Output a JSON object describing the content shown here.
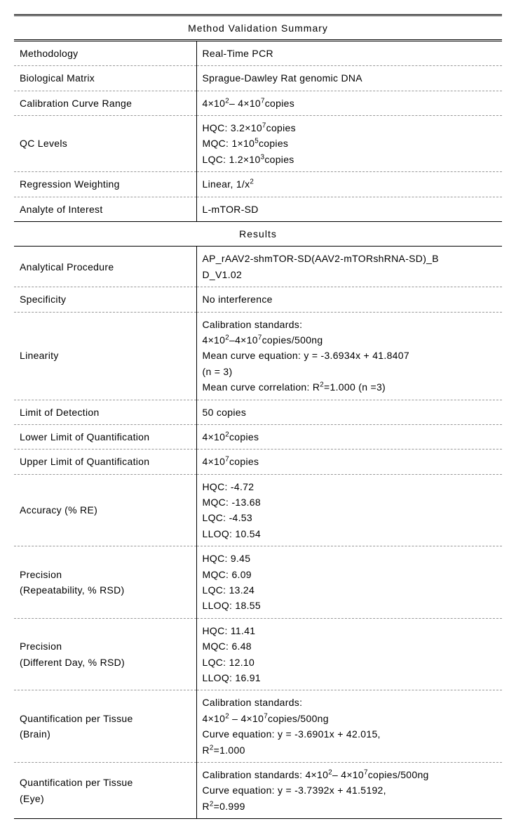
{
  "headers": {
    "method_validation": "Method Validation Summary",
    "results": "Results"
  },
  "labels": {
    "methodology": "Methodology",
    "biological_matrix": "Biological Matrix",
    "calibration_range": "Calibration Curve Range",
    "qc_levels": "QC Levels",
    "regression": "Regression Weighting",
    "analyte": "Analyte of Interest",
    "analytical_procedure": "Analytical   Procedure",
    "specificity": "Specificity",
    "linearity": "Linearity",
    "lod": "Limit   of Detection",
    "lloq": "Lower Limit of Quantification",
    "uloq": "Upper Limit of Quantification",
    "accuracy": "Accuracy   (% RE)",
    "precision_repeat": "Precision",
    "precision_repeat_sub": "(Repeatability,   % RSD)",
    "precision_day": "Precision",
    "precision_day_sub": "(Different Day, % RSD)",
    "quant_brain": "Quantification per Tissue",
    "quant_brain_sub": "(Brain)",
    "quant_eye": "Quantification per Tissue",
    "quant_eye_sub": "(Eye)"
  },
  "values": {
    "methodology": "Real-Time PCR",
    "biological_matrix": "Sprague-Dawley Rat genomic DNA",
    "calibration_range_html": " 4×10<sup>2</sup>– 4×10<sup>7</sup>copies",
    "qc_levels_html": "HQC: 3.2×10<sup>7</sup>copies<br>MQC: 1×10<sup>5</sup>copies<br>LQC: 1.2×10<sup>3</sup>copies",
    "regression_html": "Linear, 1/x<sup>2</sup>",
    "analyte": "L-mTOR-SD",
    "analytical_procedure_html": "AP_rAAV2-shmTOR-SD(AAV2-mTORshRNA-SD)_B<br>D_V1.02",
    "specificity": "No   interference",
    "linearity_html": "Calibration   standards:<br>4×10<sup>2</sup>–4×10<sup>7</sup>copies/500ng<br>Mean   curve equation: y = -3.6934x + 41.8407<br> (n = 3)<br>Mean curve correlation: R<sup>2</sup>=1.000 (n   =3)",
    "lod": "50   copies",
    "lloq_html": "4×10<sup>2</sup>copies",
    "uloq_html": "4×10<sup>7</sup>copies",
    "accuracy_html": "HQC: -4.72<br>MQC: -13.68<br>LQC: -4.53<br>LLOQ: 10.54",
    "precision_repeat_html": "HQC: 9.45<br>MQC: 6.09<br>LQC: 13.24<br>LLOQ: 18.55",
    "precision_day_html": "HQC: 11.41<br>MQC: 6.48<br>LQC: 12.10<br>LLOQ: 16.91",
    "quant_brain_html": "Calibration standards:<br>4×10<sup>2</sup> – 4×10<sup>7</sup>copies/500ng<br>Curve equation: y = -3.6901x + 42.015,<br>R<sup>2</sup>=1.000",
    "quant_eye_html": "Calibration standards: 4×10<sup>2</sup>– 4×10<sup>7</sup>copies/500ng<br>Curve equation: y = -3.7392x + 41.5192,<br>R<sup>2</sup>=0.999"
  }
}
